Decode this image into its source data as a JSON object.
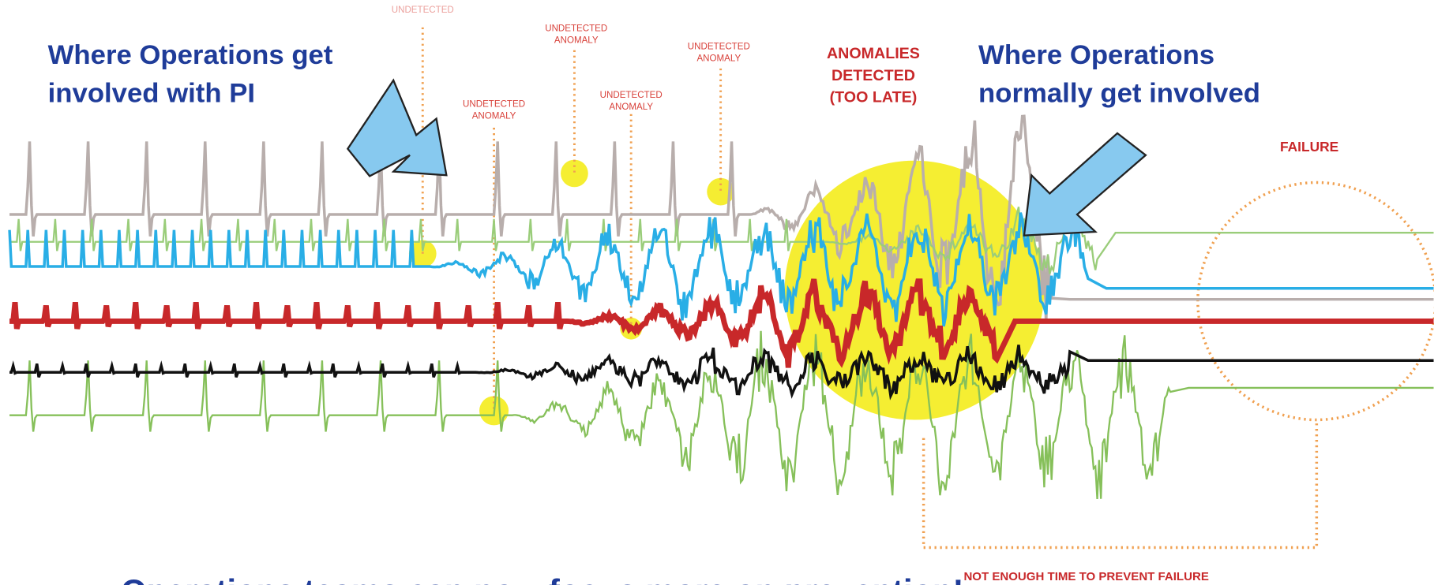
{
  "callouts": [
    {
      "lines": [
        "Where Operations get",
        "involved with PI"
      ]
    },
    {
      "lines": [
        "Where Operations",
        "normally get involved"
      ]
    }
  ],
  "anomaly_labels": [
    {
      "lines": [
        "UNDETECTED"
      ]
    },
    {
      "lines": [
        "UNDETECTED",
        "ANOMALY"
      ]
    },
    {
      "lines": [
        "UNDETECTED",
        "ANOMALY"
      ]
    },
    {
      "lines": [
        "UNDETECTED",
        "ANOMALY"
      ]
    },
    {
      "lines": [
        "UNDETECTED",
        "ANOMALY"
      ]
    }
  ],
  "detected_label": [
    "ANOMALIES",
    "DETECTED",
    "(TOO LATE)"
  ],
  "failure_label": "FAILURE",
  "gap_label": "NOT ENOUGH TIME TO PREVENT FAILURE",
  "bullet": "Operations teams can now focus more on prevention!"
}
